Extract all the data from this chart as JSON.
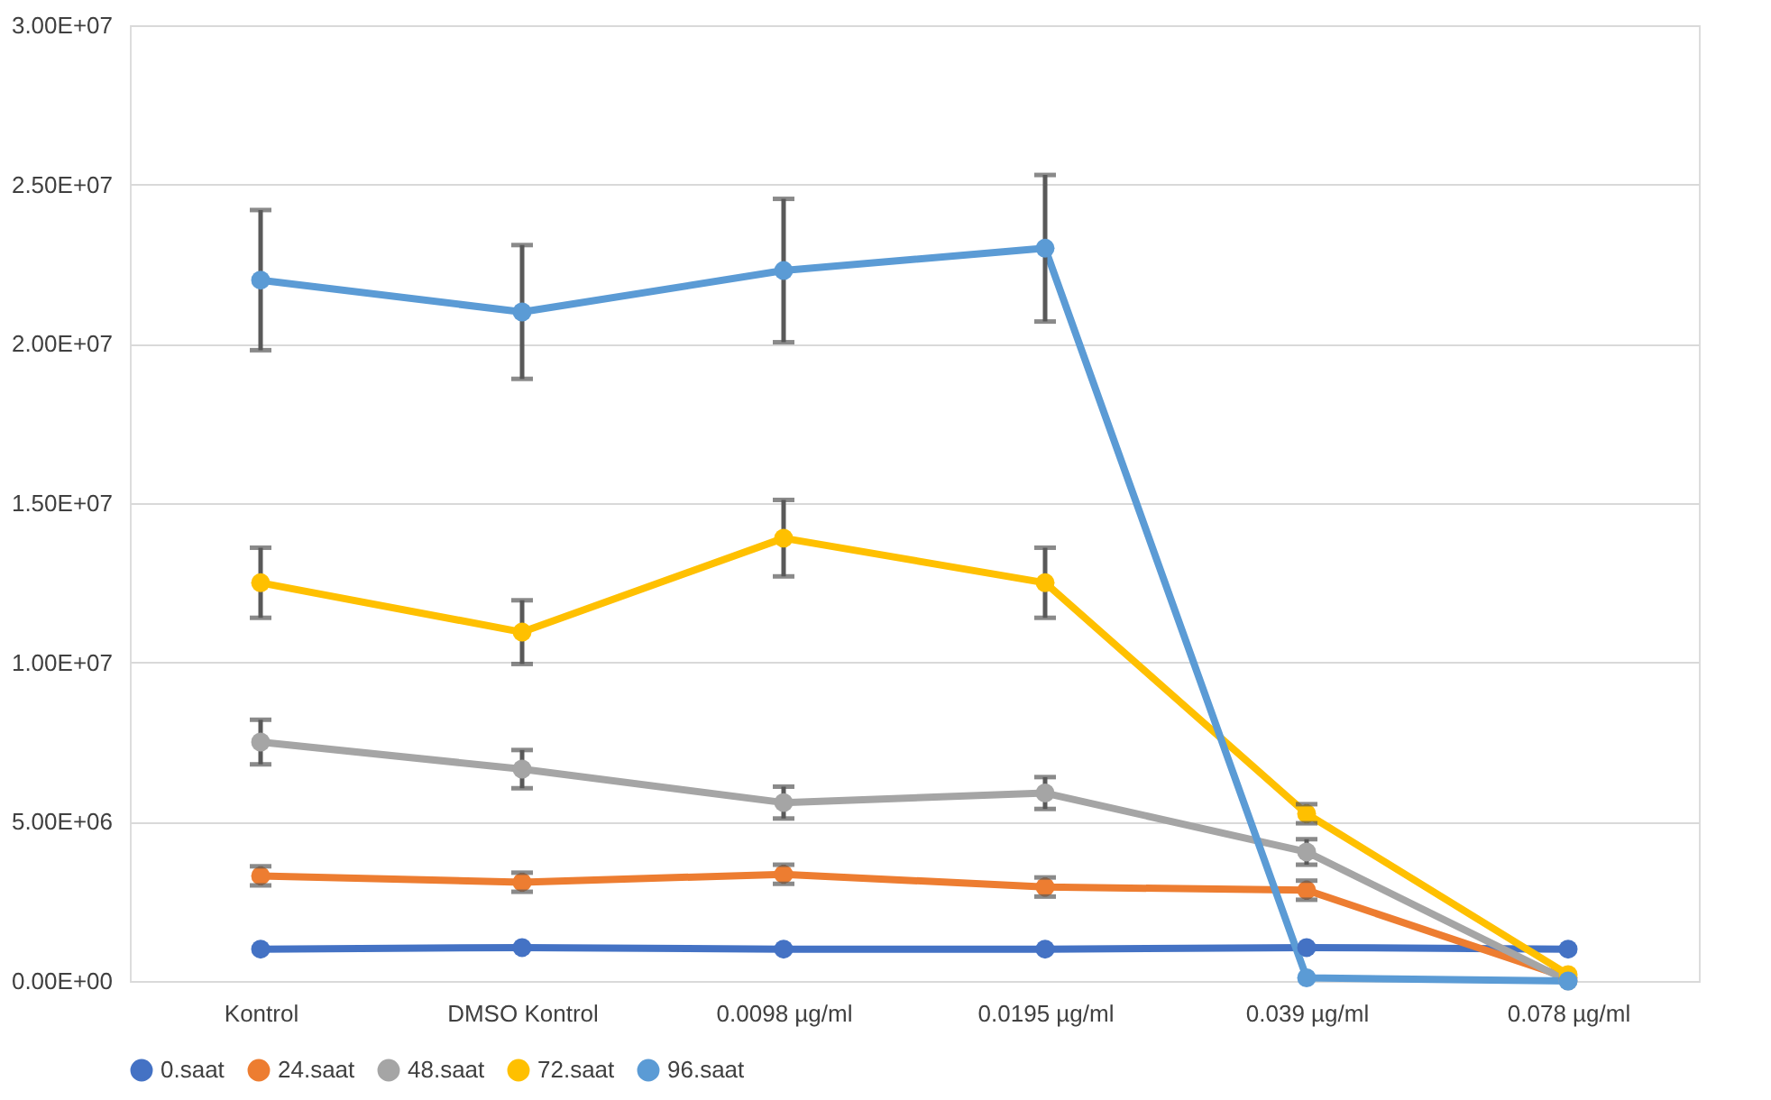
{
  "chart_data": {
    "type": "line",
    "categories": [
      "Kontrol",
      "DMSO Kontrol",
      "0.0098 µg/ml",
      "0.0195 µg/ml",
      "0.039 µg/ml",
      "0.078 µg/ml"
    ],
    "ylim": [
      0,
      30000000
    ],
    "yticks": [
      {
        "value": 0,
        "label": "0.00E+00"
      },
      {
        "value": 5000000,
        "label": "5.00E+06"
      },
      {
        "value": 10000000,
        "label": "1.00E+07"
      },
      {
        "value": 15000000,
        "label": "1.50E+07"
      },
      {
        "value": 20000000,
        "label": "2.00E+07"
      },
      {
        "value": 25000000,
        "label": "2.50E+07"
      },
      {
        "value": 30000000,
        "label": "3.00E+07"
      }
    ],
    "grid": "y",
    "legend": "bottom",
    "marker": "circle",
    "line_style": "solid",
    "series": [
      {
        "name": "0.saat",
        "color": "#4472c4",
        "values": [
          1000000,
          1050000,
          1000000,
          1000000,
          1050000,
          1000000
        ]
      },
      {
        "name": "24.saat",
        "color": "#ed7d31",
        "values": [
          3300000,
          3100000,
          3350000,
          2950000,
          2850000,
          100000
        ],
        "errors": [
          300000,
          300000,
          300000,
          300000,
          300000,
          null
        ]
      },
      {
        "name": "48.saat",
        "color": "#a5a5a5",
        "values": [
          7500000,
          6650000,
          5600000,
          5900000,
          4050000,
          0
        ],
        "errors": [
          700000,
          600000,
          500000,
          500000,
          400000,
          null
        ]
      },
      {
        "name": "72.saat",
        "color": "#ffc000",
        "values": [
          12500000,
          10950000,
          13900000,
          12500000,
          5250000,
          200000
        ],
        "errors": [
          1100000,
          1000000,
          1200000,
          1100000,
          300000,
          null
        ]
      },
      {
        "name": "96.saat",
        "color": "#5b9bd5",
        "values": [
          22000000,
          21000000,
          22300000,
          23000000,
          100000,
          0
        ],
        "errors": [
          2200000,
          2100000,
          2250000,
          2300000,
          null,
          null
        ]
      }
    ]
  }
}
